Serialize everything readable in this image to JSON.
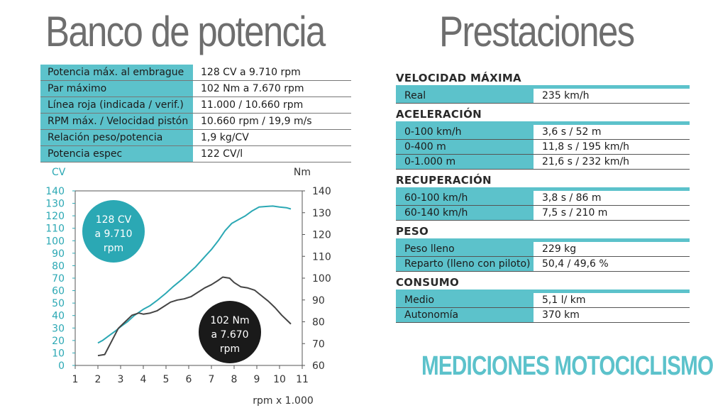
{
  "left_title": "Banco de potencia",
  "right_title": "Prestaciones",
  "specs": [
    {
      "label": "Potencia máx. al embrague",
      "value": "128 CV a 9.710 rpm"
    },
    {
      "label": "Par máximo",
      "value": "102 Nm a 7.670 rpm"
    },
    {
      "label": "Línea roja (indicada / verif.)",
      "value": "11.000 / 10.660 rpm"
    },
    {
      "label": "RPM máx. / Velocidad pistón",
      "value": "10.660 rpm / 19,9 m/s"
    },
    {
      "label": "Relación peso/potencia",
      "value": "1,9  kg/CV"
    },
    {
      "label": "Potencia espec",
      "value": "122 CV/l"
    }
  ],
  "performance": [
    {
      "title": "VELOCIDAD MÁXIMA",
      "rows": [
        {
          "label": "Real",
          "value": "235 km/h"
        }
      ]
    },
    {
      "title": "ACELERACIÓN",
      "rows": [
        {
          "label": "0-100 km/h",
          "value": "3,6 s / 52  m"
        },
        {
          "label": "0-400 m",
          "value": "11,8 s / 195  km/h"
        },
        {
          "label": "0-1.000 m",
          "value": "21,6 s / 232  km/h"
        }
      ]
    },
    {
      "title": "RECUPERACIÓN",
      "rows": [
        {
          "label": "60-100 km/h",
          "value": "3,8 s / 86  m"
        },
        {
          "label": "60-140 km/h",
          "value": "7,5 s / 210  m"
        }
      ]
    },
    {
      "title": "PESO",
      "rows": [
        {
          "label": "Peso lleno",
          "value": "229 kg"
        },
        {
          "label": "Reparto (lleno con piloto)",
          "value": "50,4 / 49,6  %"
        }
      ]
    },
    {
      "title": "CONSUMO",
      "rows": [
        {
          "label": "Medio",
          "value": "5,1 l/ km"
        },
        {
          "label": "Autonomía",
          "value": "370 km"
        }
      ]
    }
  ],
  "brand": "MEDICIONES MOTOCICLISMO",
  "colors": {
    "power": "#2ba8b4",
    "torque": "#444444",
    "accent": "#5cc2cb"
  },
  "chart_data": {
    "type": "line",
    "xlabel": "rpm x 1.000",
    "ylabel_left": "CV",
    "ylabel_right": "Nm",
    "xlim": [
      1,
      11
    ],
    "ylim_left": [
      0,
      140
    ],
    "ylim_right": [
      60,
      140
    ],
    "x_ticks": [
      1,
      2,
      3,
      4,
      5,
      6,
      7,
      8,
      9,
      10,
      11
    ],
    "y_ticks_left": [
      0,
      10,
      20,
      30,
      40,
      50,
      60,
      70,
      80,
      90,
      100,
      110,
      120,
      130,
      140
    ],
    "y_ticks_right": [
      60,
      70,
      80,
      90,
      100,
      110,
      120,
      130,
      140
    ],
    "grid": false,
    "series": [
      {
        "axis": "left",
        "x": [
          2.0,
          2.2,
          2.5,
          2.8,
          3.0,
          3.3,
          3.6,
          4.0,
          4.3,
          4.6,
          5.0,
          5.3,
          5.7,
          6.0,
          6.3,
          6.7,
          7.0,
          7.3,
          7.6,
          7.9,
          8.2,
          8.5,
          8.8,
          9.1,
          9.4,
          9.7,
          10.0,
          10.3,
          10.5
        ],
        "values": [
          18,
          20,
          24,
          28,
          31,
          35,
          40,
          45,
          48,
          52,
          58,
          63,
          69,
          74,
          79,
          87,
          93,
          100,
          108,
          114,
          117,
          120,
          124,
          127,
          127.5,
          127.8,
          127,
          126.5,
          125.5
        ]
      },
      {
        "axis": "right",
        "x": [
          2.0,
          2.3,
          2.6,
          2.9,
          3.2,
          3.5,
          3.8,
          4.0,
          4.3,
          4.6,
          4.9,
          5.2,
          5.5,
          5.8,
          6.1,
          6.4,
          6.7,
          7.0,
          7.3,
          7.5,
          7.8,
          8.0,
          8.3,
          8.6,
          8.9,
          9.2,
          9.5,
          9.8,
          10.1,
          10.4,
          10.5
        ],
        "values": [
          64.5,
          65,
          71,
          77,
          80,
          83,
          84,
          83.5,
          84,
          85,
          87,
          89,
          90,
          90.5,
          91.5,
          93.5,
          95.5,
          97,
          99,
          100.5,
          100,
          98,
          96,
          95.5,
          94.5,
          92,
          89.5,
          86.5,
          83,
          80,
          79
        ]
      }
    ],
    "annotations": [
      {
        "lines": [
          "128 CV",
          "a 9.710",
          "rpm"
        ],
        "color": "#2ba8b4"
      },
      {
        "lines": [
          "102 Nm",
          "a 7.670",
          "rpm"
        ],
        "color": "#1a1a1a"
      }
    ]
  }
}
